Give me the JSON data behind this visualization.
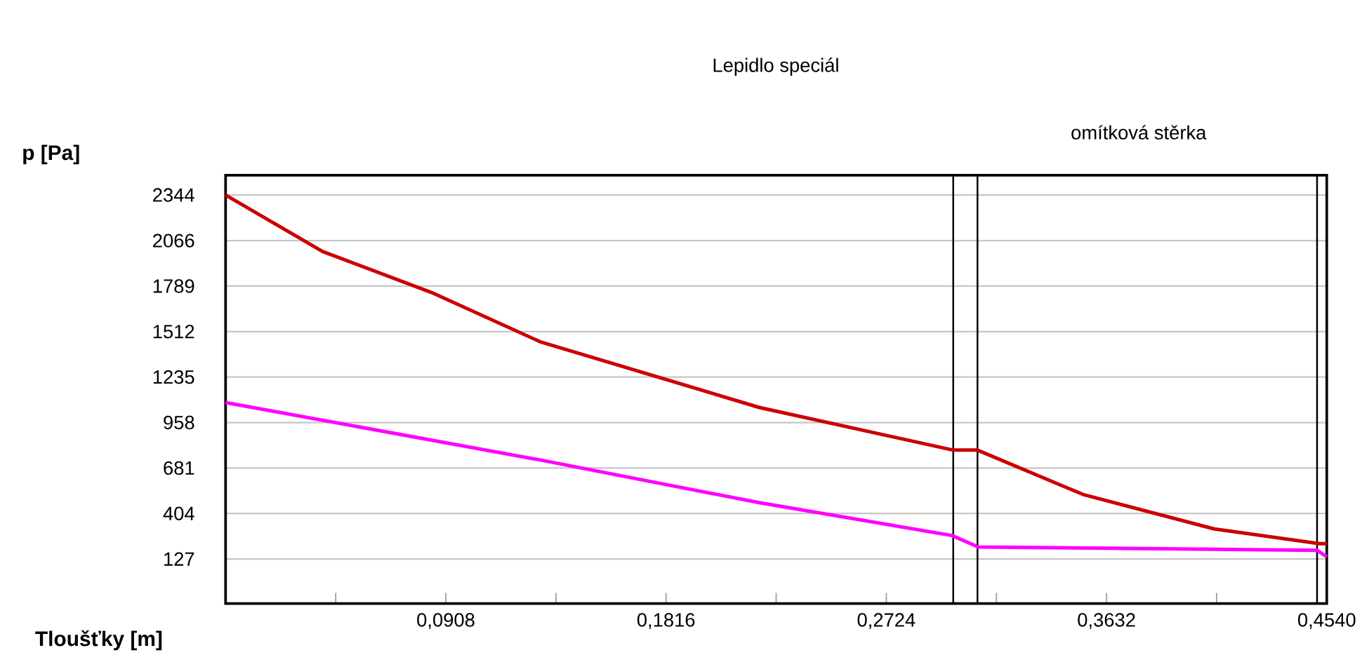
{
  "chart_data": {
    "type": "line",
    "xlabel": "Tloušťky [m]",
    "ylabel": "p [Pa]",
    "annotations": [
      "Lepidlo speciál",
      "omítková stěrka"
    ],
    "xlim": [
      0,
      0.454
    ],
    "ylim": [
      -144,
      2464
    ],
    "xticks": [
      {
        "value": 0.0454,
        "label": null
      },
      {
        "value": 0.0908,
        "label": "0,0908"
      },
      {
        "value": 0.1362,
        "label": null
      },
      {
        "value": 0.1816,
        "label": "0,1816"
      },
      {
        "value": 0.227,
        "label": null
      },
      {
        "value": 0.2724,
        "label": "0,2724"
      },
      {
        "value": 0.3178,
        "label": null
      },
      {
        "value": 0.3632,
        "label": "0,3632"
      },
      {
        "value": 0.4086,
        "label": null
      },
      {
        "value": 0.454,
        "label": "0,4540"
      }
    ],
    "yticks": [
      127,
      404,
      681,
      958,
      1235,
      1512,
      1789,
      2066,
      2344
    ],
    "grid": "y",
    "marker": "none",
    "line_style": "solid",
    "ref_lines": [
      {
        "axis": "x",
        "value": 0.3,
        "color": "#000000"
      },
      {
        "axis": "x",
        "value": 0.31,
        "color": "#000000"
      },
      {
        "axis": "x",
        "value": 0.45,
        "color": "#000000"
      }
    ],
    "series": [
      {
        "color": "#cc0000",
        "x": [
          0,
          0.04,
          0.0849,
          0.1297,
          0.22,
          0.3,
          0.31,
          0.3535,
          0.4076,
          0.451,
          0.454
        ],
        "values": [
          2344,
          2000,
          1750,
          1450,
          1050,
          790,
          790,
          520,
          310,
          220,
          220
        ]
      },
      {
        "color": "#ff00ff",
        "x": [
          0,
          0.1297,
          0.22,
          0.2995,
          0.3103,
          0.45,
          0.454
        ],
        "values": [
          1080,
          730,
          470,
          270,
          200,
          180,
          140
        ]
      }
    ]
  }
}
